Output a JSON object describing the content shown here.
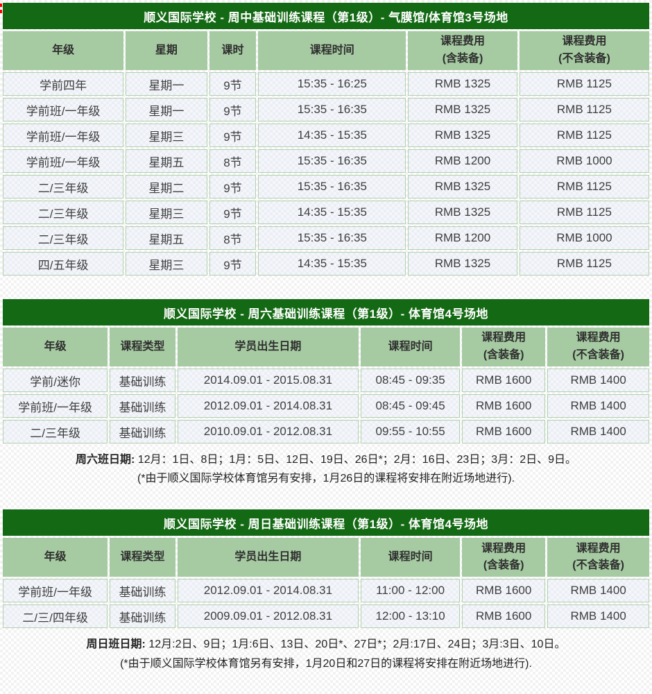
{
  "colors": {
    "title_bg": "#146a14",
    "header_bg": "#a6cba2",
    "cell_border": "#b2d0ae",
    "body_text": "#3d3d3d",
    "note_text": "#222222"
  },
  "tables": [
    {
      "title": "顺义国际学校 - 周中基础训练课程（第1级）- 气膜馆/体育馆3号场地",
      "columns": [
        "年级",
        "星期",
        "课时",
        "课程时间",
        "课程费用\n(含装备)",
        "课程费用\n(不含装备)"
      ],
      "rows": [
        [
          "学前四年",
          "星期一",
          "9节",
          "15:35 - 16:25",
          "RMB 1325",
          "RMB 1125"
        ],
        [
          "学前班/一年级",
          "星期一",
          "9节",
          "15:35 - 16:35",
          "RMB 1325",
          "RMB 1125"
        ],
        [
          "学前班/一年级",
          "星期三",
          "9节",
          "14:35 - 15:35",
          "RMB 1325",
          "RMB 1125"
        ],
        [
          "学前班/一年级",
          "星期五",
          "8节",
          "15:35 - 16:35",
          "RMB 1200",
          "RMB 1000"
        ],
        [
          "二/三年级",
          "星期二",
          "9节",
          "15:35 - 16:35",
          "RMB 1325",
          "RMB 1125"
        ],
        [
          "二/三年级",
          "星期三",
          "9节",
          "14:35 - 15:35",
          "RMB 1325",
          "RMB 1125"
        ],
        [
          "二/三年级",
          "星期五",
          "8节",
          "15:35 - 16:35",
          "RMB 1200",
          "RMB 1000"
        ],
        [
          "四/五年级",
          "星期三",
          "9节",
          "14:35 - 15:35",
          "RMB 1325",
          "RMB 1125"
        ]
      ]
    },
    {
      "title": "顺义国际学校 - 周六基础训练课程（第1级）- 体育馆4号场地",
      "columns": [
        "年级",
        "课程类型",
        "学员出生日期",
        "课程时间",
        "课程费用\n(含装备)",
        "课程费用\n(不含装备)"
      ],
      "rows": [
        [
          "学前/迷你",
          "基础训练",
          "2014.09.01 - 2015.08.31",
          "08:45 - 09:35",
          "RMB 1600",
          "RMB 1400"
        ],
        [
          "学前班/一年级",
          "基础训练",
          "2012.09.01 - 2014.08.31",
          "08:45 - 09:45",
          "RMB 1600",
          "RMB 1400"
        ],
        [
          "二/三年级",
          "基础训练",
          "2010.09.01 - 2012.08.31",
          "09:55 - 10:55",
          "RMB 1600",
          "RMB 1400"
        ]
      ]
    },
    {
      "title": "顺义国际学校 - 周日基础训练课程（第1级）- 体育馆4号场地",
      "columns": [
        "年级",
        "课程类型",
        "学员出生日期",
        "课程时间",
        "课程费用\n(含装备)",
        "课程费用\n(不含装备)"
      ],
      "rows": [
        [
          "学前班/一年级",
          "基础训练",
          "2012.09.01 - 2014.08.31",
          "11:00 - 12:00",
          "RMB 1600",
          "RMB 1400"
        ],
        [
          "二/三/四年级",
          "基础训练",
          "2009.09.01 - 2012.08.31",
          "12:00 - 13:10",
          "RMB 1600",
          "RMB 1400"
        ]
      ]
    }
  ],
  "notes": [
    {
      "label": "周六班日期:",
      "dates": "12月：1日、8日；1月：5日、12日、19日、26日*；2月：16日、23日；3月：2日、9日。",
      "remark": "(*由于顺义国际学校体育馆另有安排，1月26日的课程将安排在附近场地进行)."
    },
    {
      "label": "周日班日期:",
      "dates": "12月:2日、9日；1月:6日、13日、20日*、27日*；2月:17日、24日；3月:3日、10日。",
      "remark": "(*由于顺义国际学校体育馆另有安排，1月20日和27日的课程将安排在附近场地进行)."
    }
  ]
}
